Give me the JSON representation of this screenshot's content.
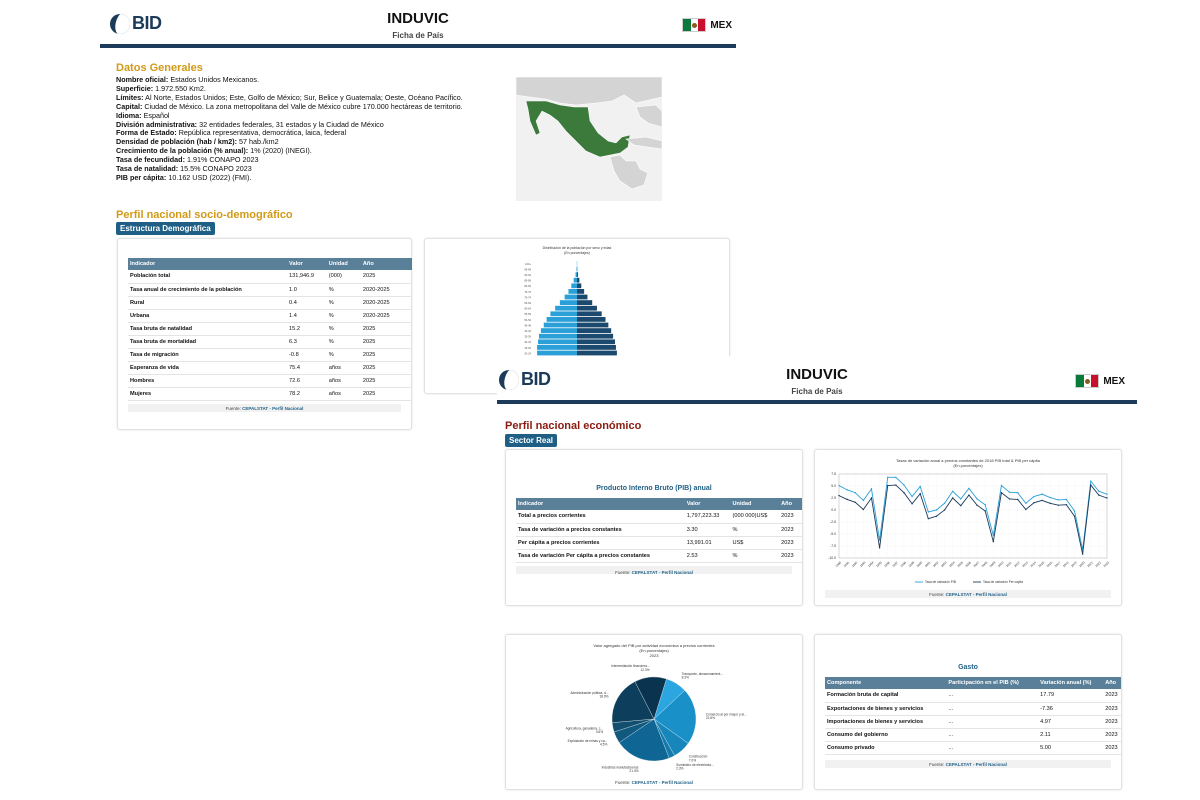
{
  "page1": {
    "header": {
      "logo": "BID",
      "title": "INDUVIC",
      "subtitle": "Ficha de País",
      "country_code": "MEX"
    },
    "datos_generales": {
      "title": "Datos Generales",
      "items": [
        {
          "label": "Nombre oficial:",
          "value": "Estados Unidos Mexicanos."
        },
        {
          "label": "Superficie:",
          "value": "1.972.550 Km2."
        },
        {
          "label": "Límites:",
          "value": "Al Norte, Estados Unidos; Este, Golfo de México; Sur, Belice y Guatemala; Oeste, Océano Pacífico."
        },
        {
          "label": "Capital:",
          "value": "Ciudad de México. La zona metropolitana del Valle de México cubre 170.000 hectáreas de territorio."
        },
        {
          "label": "Idioma:",
          "value": "Español"
        },
        {
          "label": "División administrativa:",
          "value": "32 entidades federales, 31 estados y la Ciudad de México"
        },
        {
          "label": "Forma de Estado:",
          "value": "República representativa, democrática, laica, federal"
        },
        {
          "label": "Densidad de población (hab / km2):",
          "value": "57 hab./km2"
        },
        {
          "label": "Crecimiento de la población (% anual):",
          "value": "1% (2020) (INEGI)."
        },
        {
          "label": "Tasa de fecundidad:",
          "value": "1.91% CONAPO 2023"
        },
        {
          "label": "Tasa de natalidad:",
          "value": "15.5% CONAPO 2023"
        },
        {
          "label": "PIB per cápita:",
          "value": "10.162 USD (2022) (FMI)."
        }
      ]
    },
    "socio": {
      "title": "Perfil nacional socio-demográfico",
      "badge": "Estructura Demográfica",
      "columns": [
        "Indicador",
        "Valor",
        "Unidad",
        "Año"
      ],
      "rows": [
        [
          "Población total",
          "131,946.9",
          "(000)",
          "2025"
        ],
        [
          "Tasa anual de crecimiento de la población",
          "1.0",
          "%",
          "2020-2025"
        ],
        [
          "Rural",
          "0.4",
          "%",
          "2020-2025"
        ],
        [
          "Urbana",
          "1.4",
          "%",
          "2020-2025"
        ],
        [
          "Tasa bruta de natalidad",
          "15.2",
          "%",
          "2025"
        ],
        [
          "Tasa bruta de mortalidad",
          "6.3",
          "%",
          "2025"
        ],
        [
          "Tasa de migración",
          "-0.8",
          "%",
          "2025"
        ],
        [
          "Esperanza de vida",
          "75.4",
          "años",
          "2025"
        ],
        [
          "Hombres",
          "72.6",
          "años",
          "2025"
        ],
        [
          "Mujeres",
          "78.2",
          "años",
          "2025"
        ]
      ],
      "source_prefix": "Fuente: ",
      "source_link": "CEPALSTAT - Perfil Nacional"
    },
    "pyramid": {
      "title": "Distribución de la población por sexo y edad",
      "subtitle": "(En porcentajes)"
    }
  },
  "page2": {
    "header": {
      "logo": "BID",
      "title": "INDUVIC",
      "subtitle": "Ficha de País",
      "country_code": "MEX"
    },
    "economico": {
      "title": "Perfil nacional económico",
      "badge": "Sector Real"
    },
    "pib": {
      "title": "Producto Interno Bruto (PIB) anual",
      "columns": [
        "Indicador",
        "Valor",
        "Unidad",
        "Año"
      ],
      "rows": [
        [
          "Total a precios corrientes",
          "1,797,223.33",
          "(000 000)US$",
          "2023"
        ],
        [
          "Tasa de variación a precios constantes",
          "3.30",
          "%",
          "2023"
        ],
        [
          "Per cápita a precios corrientes",
          "13,991.01",
          "US$",
          "2023"
        ],
        [
          "Tasa de variación Per cápita a precios constantes",
          "2.53",
          "%",
          "2023"
        ]
      ],
      "source_prefix": "Fuente: ",
      "source_link": "CEPALSTAT - Perfil Nacional"
    },
    "line_chart_card": {
      "source_prefix": "Fuente: ",
      "source_link": "CEPALSTAT - Perfil Nacional"
    },
    "pie_card": {
      "source_prefix": "Fuente: ",
      "source_link": "CEPALSTAT - Perfil Nacional"
    },
    "gasto": {
      "title": "Gasto",
      "columns": [
        "Componente",
        "Participación en el PIB (%)",
        "Variación anual (%)",
        "Año"
      ],
      "rows": [
        [
          "Formación bruta de capital",
          "...",
          "17.79",
          "2023"
        ],
        [
          "Exportaciones de bienes y servicios",
          "...",
          "-7.36",
          "2023"
        ],
        [
          "Importaciones de bienes y servicios",
          "...",
          "4.97",
          "2023"
        ],
        [
          "Consumo del gobierno",
          "...",
          "2.11",
          "2023"
        ],
        [
          "Consumo privado",
          "...",
          "5.00",
          "2023"
        ]
      ],
      "source_prefix": "Fuente: ",
      "source_link": "CEPALSTAT - Perfil Nacional"
    }
  },
  "chart_data": [
    {
      "type": "bar",
      "title": "Distribución de la población por sexo y edad",
      "subtitle": "(En porcentajes)",
      "categories": [
        "100+",
        "95-99",
        "90-94",
        "85-89",
        "80-84",
        "75-79",
        "70-74",
        "65-69",
        "60-64",
        "55-59",
        "50-54",
        "45-49",
        "40-44",
        "35-39",
        "30-34",
        "25-29",
        "20-24",
        "15-19",
        "10-14",
        "5-9",
        "0-4"
      ],
      "series": [
        {
          "values": [
            0.02,
            0.05,
            0.15,
            0.35,
            0.6,
            0.9,
            1.3,
            1.8,
            2.3,
            2.8,
            3.2,
            3.5,
            3.8,
            4.0,
            4.1,
            4.2,
            4.2,
            4.1,
            4.0,
            3.8,
            3.6
          ]
        },
        {
          "values": [
            0.01,
            0.03,
            0.1,
            0.25,
            0.45,
            0.75,
            1.1,
            1.6,
            2.1,
            2.6,
            3.0,
            3.3,
            3.6,
            3.8,
            4.0,
            4.1,
            4.2,
            4.2,
            4.1,
            3.9,
            3.7
          ]
        }
      ],
      "colors": [
        "#2a9fd8",
        "#1c4a6e"
      ]
    },
    {
      "type": "line",
      "title": "Tasas de variación anual a precios constantes de 2018 PIB total & PIB per cápita",
      "subtitle": "(En porcentajes)",
      "x": [
        1990,
        1991,
        1992,
        1993,
        1994,
        1995,
        1996,
        1997,
        1998,
        1999,
        2000,
        2001,
        2002,
        2003,
        2004,
        2005,
        2006,
        2007,
        2008,
        2009,
        2010,
        2011,
        2012,
        2013,
        2014,
        2015,
        2016,
        2017,
        2018,
        2019,
        2020,
        2021,
        2022,
        2023
      ],
      "ylim": [
        -10,
        7.5
      ],
      "yticks": [
        7.5,
        5.0,
        2.5,
        0.0,
        -2.5,
        -5.0,
        -7.5,
        -10.0
      ],
      "series": [
        {
          "name": "Tasa de variación PIB",
          "color": "#2a9fd8",
          "values": [
            5.1,
            4.2,
            3.6,
            2.0,
            4.4,
            -6.3,
            6.8,
            6.8,
            5.2,
            2.8,
            4.9,
            -0.4,
            0.0,
            1.4,
            3.9,
            2.3,
            4.5,
            2.3,
            1.1,
            -5.3,
            5.1,
            3.7,
            3.6,
            1.4,
            2.8,
            3.3,
            2.6,
            2.1,
            2.2,
            -0.2,
            -8.3,
            6.0,
            3.9,
            3.3
          ]
        },
        {
          "name": "Tasa de variación Per cápita",
          "color": "#1c3a5a",
          "values": [
            3.0,
            2.2,
            1.6,
            0.1,
            2.5,
            -7.9,
            5.1,
            5.2,
            3.6,
            1.3,
            3.4,
            -1.8,
            -1.3,
            0.0,
            2.5,
            0.9,
            3.1,
            1.0,
            -0.2,
            -6.6,
            3.6,
            2.3,
            2.2,
            0.1,
            1.5,
            2.0,
            1.4,
            1.0,
            1.1,
            -1.3,
            -9.2,
            5.2,
            3.1,
            2.5
          ]
        }
      ]
    },
    {
      "type": "pie",
      "title": "Valor agregado del PIB por actividad económica a precios corrientes",
      "subtitle": "(En porcentajes)",
      "year": "2023",
      "slices": [
        {
          "label": "Transporte, almacenamient...",
          "pct": "8.3%",
          "value": 8.3,
          "color": "#2ba6e0"
        },
        {
          "label": "Comercio al por mayor y al...",
          "pct": "21.8%",
          "value": 21.8,
          "color": "#1a90c8"
        },
        {
          "label": "Construcción",
          "pct": "7.0%",
          "value": 7.0,
          "color": "#1786bb"
        },
        {
          "label": "Suministro de electricida...",
          "pct": "2.3%",
          "value": 2.3,
          "color": "#157aac"
        },
        {
          "label": "Industrias manufactureras",
          "pct": "21.4%",
          "value": 21.4,
          "color": "#0f6694"
        },
        {
          "label": "Explotación de minas y ca...",
          "pct": "4.5%",
          "value": 4.5,
          "color": "#12597f"
        },
        {
          "label": "Agricultura, ganadería, c...",
          "pct": "3.6%",
          "value": 3.6,
          "color": "#124e70"
        },
        {
          "label": "Administración pública, d...",
          "pct": "18.9%",
          "value": 18.9,
          "color": "#0d3f5c"
        },
        {
          "label": "Intermediación financiera...",
          "pct": "12.3%",
          "value": 12.3,
          "color": "#0a3350"
        }
      ]
    }
  ]
}
